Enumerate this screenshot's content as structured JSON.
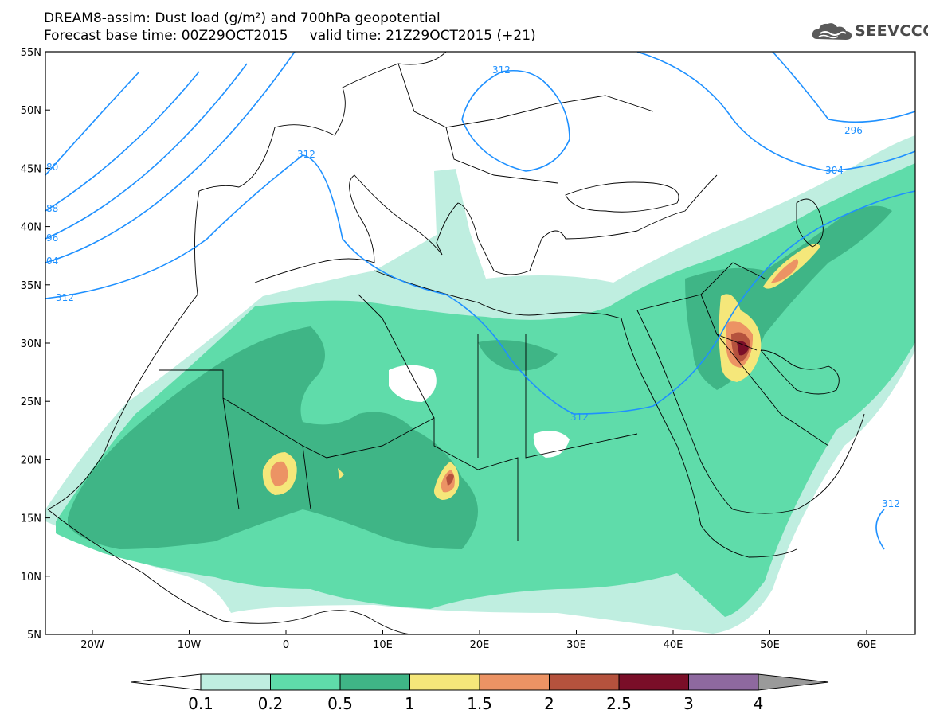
{
  "header": {
    "title_line1": "DREAM8-assim: Dust load (g/m²) and 700hPa geopotential",
    "title_line2": "Forecast base time: 00Z29OCT2015     valid time: 21Z29OCT2015 (+21)",
    "logo_text": "SEEVCCC"
  },
  "map": {
    "lat_labels": [
      "55N",
      "50N",
      "45N",
      "40N",
      "35N",
      "30N",
      "25N",
      "20N",
      "15N",
      "10N",
      "5N"
    ],
    "lon_labels": [
      "20W",
      "10W",
      "0",
      "10E",
      "20E",
      "30E",
      "40E",
      "50E",
      "60E"
    ],
    "geopotential_contour_labels": [
      "312",
      "312",
      "312",
      "312",
      "312",
      "296",
      "304",
      "80",
      "88",
      "96",
      "04",
      "312"
    ],
    "colors": {
      "contour": "#1e90ff",
      "background": "#ffffff"
    }
  },
  "colorbar": {
    "levels": [
      "0.1",
      "0.2",
      "0.5",
      "1",
      "1.5",
      "2",
      "2.5",
      "3",
      "4"
    ],
    "colors": [
      "#bfeee0",
      "#5fdcaa",
      "#3fb586",
      "#f5e77a",
      "#ec9364",
      "#b5523d",
      "#7a0e28",
      "#8e699f",
      "#9a9a9a"
    ]
  }
}
